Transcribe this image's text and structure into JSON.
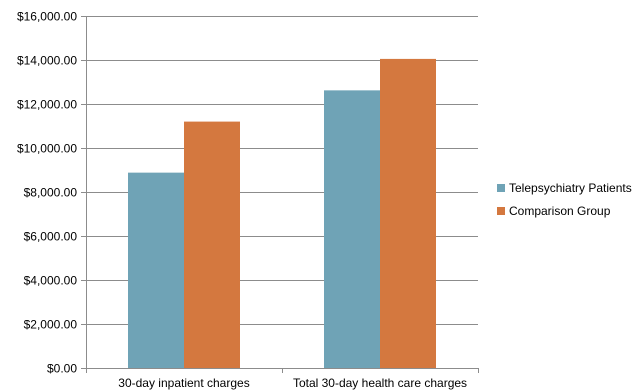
{
  "chart_data": {
    "type": "bar",
    "title": "",
    "xlabel": "",
    "ylabel": "",
    "categories": [
      "30-day inpatient charges",
      "Total 30-day health care charges"
    ],
    "series": [
      {
        "name": "Telepsychiatry Patients",
        "values": [
          8880,
          12620
        ],
        "color": "#6fa3b6"
      },
      {
        "name": "Comparison Group",
        "values": [
          11200,
          14050
        ],
        "color": "#d4783f"
      }
    ],
    "ylim": [
      0,
      16000
    ],
    "yticks": [
      0,
      2000,
      4000,
      6000,
      8000,
      10000,
      12000,
      14000,
      16000
    ],
    "ytick_labels": [
      "$0.00",
      "$2,000.00",
      "$4,000.00",
      "$6,000.00",
      "$8,000.00",
      "$10,000.00",
      "$12,000.00",
      "$14,000.00",
      "$16,000.00"
    ],
    "grid": true,
    "legend_position": "right"
  }
}
